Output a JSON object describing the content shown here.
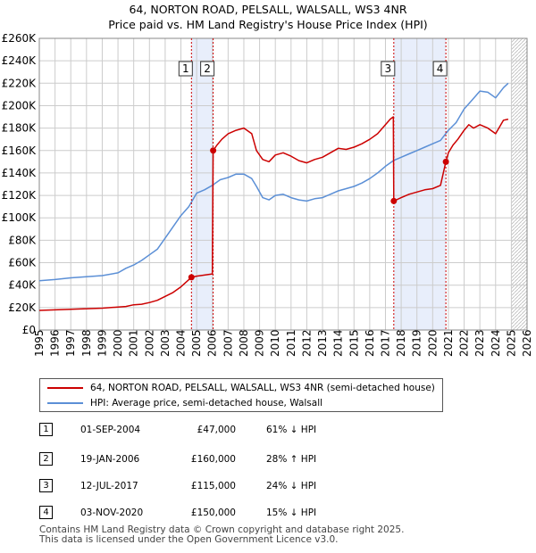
{
  "title_line1": "64, NORTON ROAD, PELSALL, WALSALL, WS3 4NR",
  "title_line2": "Price paid vs. HM Land Registry's House Price Index (HPI)",
  "colors": {
    "price": "#cc0000",
    "hpi": "#5b8fd6",
    "shade": "#e8eefb",
    "grid": "#cccccc",
    "event": "#cc0000"
  },
  "chart_data": {
    "type": "line",
    "title": "64, NORTON ROAD, PELSALL, WALSALL, WS3 4NR — Price paid vs. HM Land Registry's House Price Index (HPI)",
    "xlabel": "",
    "ylabel": "",
    "xlim": [
      1995,
      2026
    ],
    "ylim": [
      0,
      260000
    ],
    "x_ticks": [
      1995,
      1996,
      1997,
      1998,
      1999,
      2000,
      2001,
      2002,
      2003,
      2004,
      2005,
      2006,
      2007,
      2008,
      2009,
      2010,
      2011,
      2012,
      2013,
      2014,
      2015,
      2016,
      2017,
      2018,
      2019,
      2020,
      2021,
      2022,
      2023,
      2024,
      2025,
      2026
    ],
    "y_ticks": [
      0,
      20000,
      40000,
      60000,
      80000,
      100000,
      120000,
      140000,
      160000,
      180000,
      200000,
      220000,
      240000,
      260000
    ],
    "y_tick_labels": [
      "£0",
      "£20K",
      "£40K",
      "£60K",
      "£80K",
      "£100K",
      "£120K",
      "£140K",
      "£160K",
      "£180K",
      "£200K",
      "£220K",
      "£240K",
      "£260K"
    ],
    "grid": true,
    "forecast_from": 2025.0,
    "shaded_periods": [
      [
        2004.67,
        2006.05
      ],
      [
        2017.53,
        2020.84
      ]
    ],
    "series": [
      {
        "name": "64, NORTON ROAD, PELSALL, WALSALL, WS3 4NR (semi-detached house)",
        "x": [
          1995.0,
          1996.0,
          1997.0,
          1998.0,
          1999.0,
          2000.0,
          2000.5,
          2001.0,
          2001.5,
          2002.0,
          2002.5,
          2003.0,
          2003.5,
          2004.0,
          2004.67,
          2005.0,
          2005.5,
          2006.0,
          2006.05,
          2006.3,
          2006.6,
          2007.0,
          2007.5,
          2008.0,
          2008.5,
          2008.8,
          2009.2,
          2009.6,
          2010.0,
          2010.5,
          2011.0,
          2011.5,
          2012.0,
          2012.5,
          2013.0,
          2013.5,
          2014.0,
          2014.5,
          2015.0,
          2015.5,
          2016.0,
          2016.5,
          2017.0,
          2017.3,
          2017.5,
          2017.53,
          2018.0,
          2018.5,
          2019.0,
          2019.5,
          2020.0,
          2020.5,
          2020.84,
          2021.0,
          2021.3,
          2021.6,
          2022.0,
          2022.3,
          2022.6,
          2023.0,
          2023.5,
          2024.0,
          2024.5,
          2024.8
        ],
        "values": [
          17500,
          18000,
          18500,
          19000,
          19500,
          20500,
          21000,
          22500,
          23000,
          24500,
          26500,
          30000,
          33500,
          38500,
          47000,
          48000,
          49000,
          50000,
          160000,
          165000,
          170000,
          175000,
          178000,
          180000,
          175000,
          160000,
          152000,
          150000,
          156000,
          158000,
          155000,
          151000,
          149000,
          152000,
          154000,
          158000,
          162000,
          161000,
          163000,
          166000,
          170000,
          175000,
          183000,
          188000,
          190000,
          115000,
          118000,
          121000,
          123000,
          125000,
          126000,
          129000,
          150000,
          158000,
          165000,
          170000,
          178000,
          183000,
          180000,
          183000,
          180000,
          175000,
          187000,
          188000
        ]
      },
      {
        "name": "HPI: Average price, semi-detached house, Walsall",
        "x": [
          1995.0,
          1996.0,
          1997.0,
          1998.0,
          1999.0,
          2000.0,
          2000.5,
          2001.0,
          2001.5,
          2002.0,
          2002.5,
          2003.0,
          2003.5,
          2004.0,
          2004.5,
          2005.0,
          2005.5,
          2006.0,
          2006.5,
          2007.0,
          2007.5,
          2008.0,
          2008.5,
          2008.8,
          2009.2,
          2009.6,
          2010.0,
          2010.5,
          2011.0,
          2011.5,
          2012.0,
          2012.5,
          2013.0,
          2013.5,
          2014.0,
          2014.5,
          2015.0,
          2015.5,
          2016.0,
          2016.5,
          2017.0,
          2017.5,
          2018.0,
          2018.5,
          2019.0,
          2019.5,
          2020.0,
          2020.5,
          2021.0,
          2021.5,
          2022.0,
          2022.5,
          2023.0,
          2023.5,
          2024.0,
          2024.5,
          2024.8
        ],
        "values": [
          44000,
          45000,
          46500,
          47500,
          48500,
          51000,
          55000,
          58000,
          62000,
          67000,
          72000,
          82000,
          92000,
          102000,
          110000,
          122000,
          125000,
          129000,
          134000,
          136000,
          139000,
          139000,
          135000,
          128000,
          118000,
          116000,
          120000,
          121000,
          118000,
          116000,
          115000,
          117000,
          118000,
          121000,
          124000,
          126000,
          128000,
          131000,
          135000,
          140000,
          146000,
          151000,
          154000,
          157000,
          160000,
          163000,
          166000,
          169000,
          178000,
          185000,
          197000,
          205000,
          213000,
          212000,
          207000,
          216000,
          220000
        ]
      }
    ],
    "events": [
      {
        "label": "1",
        "x": 2004.67,
        "value": 47000
      },
      {
        "label": "2",
        "x": 2006.05,
        "value": 160000
      },
      {
        "label": "3",
        "x": 2017.53,
        "value": 115000
      },
      {
        "label": "4",
        "x": 2020.84,
        "value": 150000
      }
    ]
  },
  "legend": {
    "price_label": "64, NORTON ROAD, PELSALL, WALSALL, WS3 4NR (semi-detached house)",
    "hpi_label": "HPI: Average price, semi-detached house, Walsall"
  },
  "transactions": [
    {
      "num": "1",
      "date": "01-SEP-2004",
      "price": "£47,000",
      "hpi": "61% ↓ HPI"
    },
    {
      "num": "2",
      "date": "19-JAN-2006",
      "price": "£160,000",
      "hpi": "28% ↑ HPI"
    },
    {
      "num": "3",
      "date": "12-JUL-2017",
      "price": "£115,000",
      "hpi": "24% ↓ HPI"
    },
    {
      "num": "4",
      "date": "03-NOV-2020",
      "price": "£150,000",
      "hpi": "15% ↓ HPI"
    }
  ],
  "footer_line1": "Contains HM Land Registry data © Crown copyright and database right 2025.",
  "footer_line2": "This data is licensed under the Open Government Licence v3.0."
}
